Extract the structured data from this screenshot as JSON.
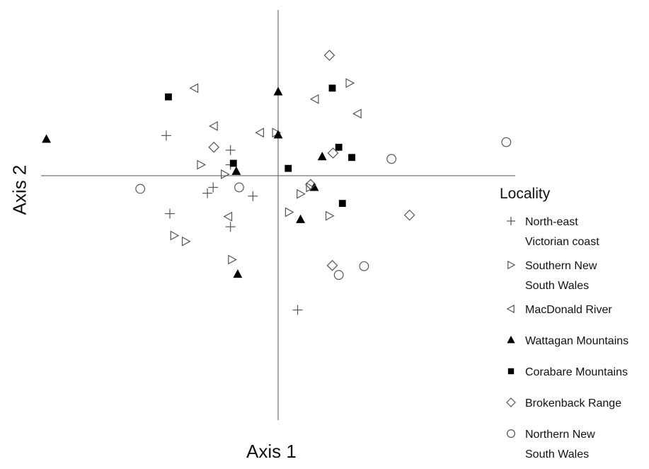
{
  "chart_data": {
    "type": "scatter",
    "xlabel": "Axis 1",
    "ylabel": "Axis 2",
    "title": "",
    "xlim": [
      -3.3,
      3.3
    ],
    "ylim": [
      -3.4,
      2.3
    ],
    "grid": false,
    "legend_title": "Locality",
    "legend_placement": "right",
    "series": [
      {
        "name": "North-east\nVictorian coast",
        "marker": "plus",
        "points": [
          [
            -1.55,
            0.55
          ],
          [
            -0.66,
            0.35
          ],
          [
            -0.66,
            0.15
          ],
          [
            -0.9,
            -0.16
          ],
          [
            -0.98,
            -0.24
          ],
          [
            -0.35,
            -0.28
          ],
          [
            -1.5,
            -0.52
          ],
          [
            -0.66,
            -0.7
          ],
          [
            0.27,
            -1.84
          ]
        ]
      },
      {
        "name": "Southern New\nSouth Wales",
        "marker": "triangle-right",
        "points": [
          [
            0.99,
            1.27
          ],
          [
            -0.03,
            0.59
          ],
          [
            -1.07,
            0.15
          ],
          [
            -0.74,
            0.02
          ],
          [
            0.44,
            -0.16
          ],
          [
            0.31,
            -0.25
          ],
          [
            0.15,
            -0.5
          ],
          [
            0.71,
            -0.55
          ],
          [
            -1.44,
            -0.82
          ],
          [
            -1.28,
            -0.9
          ],
          [
            -0.64,
            -1.15
          ]
        ]
      },
      {
        "name": "MacDonald River",
        "marker": "triangle-left",
        "points": [
          [
            -1.16,
            1.2
          ],
          [
            0.51,
            1.05
          ],
          [
            1.1,
            0.85
          ],
          [
            -0.89,
            0.68
          ],
          [
            -0.25,
            0.59
          ],
          [
            -0.69,
            -0.56
          ]
        ]
      },
      {
        "name": "Wattagan Mountains",
        "marker": "triangle-up",
        "points": [
          [
            -3.21,
            0.5
          ],
          [
            0.0,
            1.15
          ],
          [
            0.0,
            0.56
          ],
          [
            0.61,
            0.26
          ],
          [
            -0.58,
            0.06
          ],
          [
            0.5,
            -0.16
          ],
          [
            0.31,
            -0.6
          ],
          [
            -0.56,
            -1.35
          ]
        ]
      },
      {
        "name": "Corabare Mountains",
        "marker": "square",
        "points": [
          [
            -1.52,
            1.08
          ],
          [
            0.75,
            1.2
          ],
          [
            0.84,
            0.39
          ],
          [
            1.02,
            0.25
          ],
          [
            -0.62,
            0.17
          ],
          [
            0.14,
            0.1
          ],
          [
            0.89,
            -0.38
          ]
        ]
      },
      {
        "name": "Brokenback Range",
        "marker": "diamond",
        "points": [
          [
            0.71,
            1.65
          ],
          [
            -0.89,
            0.39
          ],
          [
            0.76,
            0.31
          ],
          [
            0.45,
            -0.12
          ],
          [
            1.82,
            -0.54
          ],
          [
            0.75,
            -1.23
          ]
        ]
      },
      {
        "name": "Northern New\nSouth Wales",
        "marker": "circle",
        "points": [
          [
            3.16,
            0.46
          ],
          [
            1.57,
            0.23
          ],
          [
            -1.91,
            -0.18
          ],
          [
            -0.54,
            -0.16
          ],
          [
            1.19,
            -1.24
          ],
          [
            0.84,
            -1.36
          ]
        ]
      }
    ]
  }
}
